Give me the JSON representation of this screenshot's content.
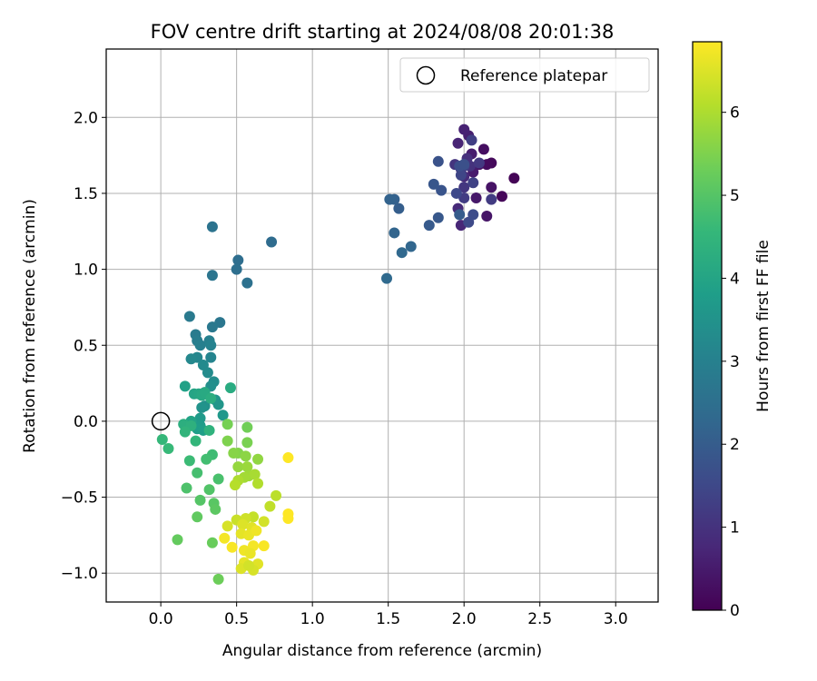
{
  "chart_data": {
    "type": "scatter",
    "title": "FOV centre drift starting at 2024/08/08 20:01:38",
    "xlabel": "Angular distance from reference (arcmin)",
    "ylabel": "Rotation from reference (arcmin)",
    "xlim": [
      -0.36,
      3.28
    ],
    "ylim": [
      -1.19,
      2.45
    ],
    "x_ticks": [
      0.0,
      0.5,
      1.0,
      1.5,
      2.0,
      2.5,
      3.0
    ],
    "x_tick_labels": [
      "0.0",
      "0.5",
      "1.0",
      "1.5",
      "2.0",
      "2.5",
      "3.0"
    ],
    "y_ticks": [
      -1.0,
      -0.5,
      0.0,
      0.5,
      1.0,
      1.5,
      2.0
    ],
    "y_tick_labels": [
      "−1.0",
      "−0.5",
      "0.0",
      "0.5",
      "1.0",
      "1.5",
      "2.0"
    ],
    "grid": true,
    "legend": {
      "placement": "top-right",
      "entries": [
        {
          "label": "Reference platepar",
          "marker": "open-circle"
        }
      ]
    },
    "reference_point": {
      "x": 0.0,
      "y": 0.0
    },
    "colorbar": {
      "label": "Hours from first FF file",
      "range": [
        0,
        6.85
      ],
      "ticks": [
        0,
        1,
        2,
        3,
        4,
        5,
        6
      ],
      "tick_labels": [
        "0",
        "1",
        "2",
        "3",
        "4",
        "5",
        "6"
      ],
      "colormap": "viridis",
      "colormap_stops": [
        "#440154",
        "#482878",
        "#3e4989",
        "#31688e",
        "#26828e",
        "#1f9e89",
        "#35b779",
        "#6ece58",
        "#b5de2b",
        "#fde725"
      ]
    },
    "series": [
      {
        "points": [
          [
            2.33,
            1.6,
            0.05
          ],
          [
            2.25,
            1.48,
            0.1
          ],
          [
            2.18,
            1.7,
            0.15
          ],
          [
            2.15,
            1.69,
            0.2
          ],
          [
            2.13,
            1.79,
            0.25
          ],
          [
            2.1,
            1.69,
            0.3
          ],
          [
            2.18,
            1.54,
            0.35
          ],
          [
            2.15,
            1.35,
            0.4
          ],
          [
            2.08,
            1.47,
            0.45
          ],
          [
            2.06,
            1.64,
            0.5
          ],
          [
            2.05,
            1.76,
            0.55
          ],
          [
            2.03,
            1.88,
            0.6
          ],
          [
            2.0,
            1.92,
            0.65
          ],
          [
            1.96,
            1.83,
            0.7
          ],
          [
            1.98,
            1.29,
            0.75
          ],
          [
            1.96,
            1.4,
            0.8
          ],
          [
            2.0,
            1.61,
            0.85
          ],
          [
            1.98,
            1.66,
            0.9
          ],
          [
            2.02,
            1.73,
            0.95
          ],
          [
            2.04,
            1.68,
            1.0
          ],
          [
            1.94,
            1.69,
            1.05
          ],
          [
            2.0,
            1.54,
            1.1
          ],
          [
            2.1,
            1.7,
            1.15
          ],
          [
            2.18,
            1.46,
            1.2
          ],
          [
            2.0,
            1.47,
            1.25
          ],
          [
            2.05,
            1.85,
            1.3
          ],
          [
            2.06,
            1.57,
            1.35
          ],
          [
            2.0,
            1.68,
            1.4
          ],
          [
            1.98,
            1.62,
            1.45
          ],
          [
            1.95,
            1.5,
            1.5
          ],
          [
            2.03,
            1.31,
            1.55
          ],
          [
            2.06,
            1.36,
            1.6
          ],
          [
            1.97,
            1.68,
            1.65
          ],
          [
            2.0,
            1.69,
            1.7
          ],
          [
            1.83,
            1.71,
            1.75
          ],
          [
            1.85,
            1.52,
            1.8
          ],
          [
            1.8,
            1.56,
            1.85
          ],
          [
            1.83,
            1.34,
            1.9
          ],
          [
            1.77,
            1.29,
            1.95
          ],
          [
            1.97,
            1.36,
            2.0
          ],
          [
            1.57,
            1.4,
            2.05
          ],
          [
            1.54,
            1.46,
            2.1
          ],
          [
            1.51,
            1.46,
            2.15
          ],
          [
            1.54,
            1.24,
            2.2
          ],
          [
            1.65,
            1.15,
            2.25
          ],
          [
            1.59,
            1.11,
            2.3
          ],
          [
            1.49,
            0.94,
            2.35
          ],
          [
            0.73,
            1.18,
            2.4
          ],
          [
            0.51,
            1.06,
            2.45
          ],
          [
            0.5,
            1.0,
            2.5
          ],
          [
            0.57,
            0.91,
            2.55
          ],
          [
            0.34,
            1.28,
            2.6
          ],
          [
            0.34,
            0.96,
            2.65
          ],
          [
            0.39,
            0.65,
            2.7
          ],
          [
            0.34,
            0.62,
            2.75
          ],
          [
            0.19,
            0.69,
            2.8
          ],
          [
            0.23,
            0.57,
            2.85
          ],
          [
            0.24,
            0.53,
            2.9
          ],
          [
            0.26,
            0.5,
            2.95
          ],
          [
            0.32,
            0.53,
            3.0
          ],
          [
            0.33,
            0.5,
            3.05
          ],
          [
            0.33,
            0.42,
            3.1
          ],
          [
            0.24,
            0.42,
            3.15
          ],
          [
            0.2,
            0.41,
            3.2
          ],
          [
            0.28,
            0.37,
            3.25
          ],
          [
            0.31,
            0.32,
            3.3
          ],
          [
            0.35,
            0.26,
            3.35
          ],
          [
            0.33,
            0.23,
            3.4
          ],
          [
            0.29,
            0.1,
            3.45
          ],
          [
            0.27,
            0.09,
            3.5
          ],
          [
            0.36,
            0.14,
            3.55
          ],
          [
            0.38,
            0.11,
            3.6
          ],
          [
            0.41,
            0.04,
            3.65
          ],
          [
            0.26,
            0.02,
            3.7
          ],
          [
            0.26,
            -0.03,
            3.75
          ],
          [
            0.24,
            -0.05,
            3.8
          ],
          [
            0.28,
            -0.06,
            3.85
          ],
          [
            0.16,
            0.23,
            3.9
          ],
          [
            0.2,
            0.0,
            3.95
          ],
          [
            0.22,
            0.18,
            4.0
          ],
          [
            0.25,
            0.18,
            4.05
          ],
          [
            0.27,
            0.17,
            4.1
          ],
          [
            0.29,
            0.19,
            4.15
          ],
          [
            0.46,
            0.22,
            4.2
          ],
          [
            0.33,
            0.15,
            4.25
          ],
          [
            0.15,
            -0.02,
            4.3
          ],
          [
            0.2,
            -0.03,
            4.35
          ],
          [
            0.32,
            -0.06,
            4.4
          ],
          [
            0.16,
            -0.07,
            4.45
          ],
          [
            0.23,
            -0.13,
            4.5
          ],
          [
            0.01,
            -0.12,
            4.55
          ],
          [
            0.05,
            -0.18,
            4.6
          ],
          [
            0.19,
            -0.26,
            4.65
          ],
          [
            0.34,
            -0.22,
            4.7
          ],
          [
            0.3,
            -0.25,
            4.75
          ],
          [
            0.24,
            -0.34,
            4.8
          ],
          [
            0.38,
            -0.38,
            4.85
          ],
          [
            0.17,
            -0.44,
            4.9
          ],
          [
            0.32,
            -0.45,
            4.95
          ],
          [
            0.26,
            -0.52,
            5.0
          ],
          [
            0.35,
            -0.54,
            5.05
          ],
          [
            0.36,
            -0.58,
            5.1
          ],
          [
            0.24,
            -0.63,
            5.15
          ],
          [
            0.11,
            -0.78,
            5.2
          ],
          [
            0.34,
            -0.8,
            5.25
          ],
          [
            0.38,
            -1.04,
            5.3
          ],
          [
            0.57,
            -0.04,
            5.35
          ],
          [
            0.44,
            -0.02,
            5.4
          ],
          [
            0.57,
            -0.14,
            5.45
          ],
          [
            0.44,
            -0.13,
            5.5
          ],
          [
            0.51,
            -0.21,
            5.55
          ],
          [
            0.48,
            -0.21,
            5.6
          ],
          [
            0.56,
            -0.23,
            5.65
          ],
          [
            0.64,
            -0.25,
            5.7
          ],
          [
            0.51,
            -0.3,
            5.75
          ],
          [
            0.57,
            -0.3,
            5.8
          ],
          [
            0.58,
            -0.36,
            5.85
          ],
          [
            0.55,
            -0.37,
            5.9
          ],
          [
            0.62,
            -0.35,
            5.95
          ],
          [
            0.51,
            -0.39,
            6.0
          ],
          [
            0.64,
            -0.41,
            6.05
          ],
          [
            0.49,
            -0.42,
            6.1
          ],
          [
            0.76,
            -0.49,
            6.15
          ],
          [
            0.72,
            -0.56,
            6.2
          ],
          [
            0.61,
            -0.63,
            6.25
          ],
          [
            0.5,
            -0.65,
            6.3
          ],
          [
            0.56,
            -0.64,
            6.35
          ],
          [
            0.68,
            -0.66,
            6.4
          ],
          [
            0.44,
            -0.69,
            6.45
          ],
          [
            0.54,
            -0.68,
            6.5
          ],
          [
            0.6,
            -0.7,
            6.55
          ],
          [
            0.53,
            -0.74,
            6.6
          ],
          [
            0.58,
            -0.75,
            6.65
          ],
          [
            0.63,
            -0.72,
            6.7
          ],
          [
            0.42,
            -0.77,
            6.75
          ],
          [
            0.47,
            -0.83,
            6.8
          ],
          [
            0.84,
            -0.24,
            6.85
          ],
          [
            0.84,
            -0.61,
            6.85
          ],
          [
            0.84,
            -0.64,
            6.85
          ],
          [
            0.68,
            -0.82,
            6.8
          ],
          [
            0.61,
            -0.82,
            6.75
          ],
          [
            0.55,
            -0.85,
            6.7
          ],
          [
            0.59,
            -0.87,
            6.65
          ],
          [
            0.55,
            -0.93,
            6.6
          ],
          [
            0.64,
            -0.94,
            6.55
          ],
          [
            0.53,
            -0.97,
            6.5
          ],
          [
            0.61,
            -0.98,
            6.45
          ],
          [
            0.58,
            -0.95,
            6.4
          ]
        ]
      }
    ]
  }
}
